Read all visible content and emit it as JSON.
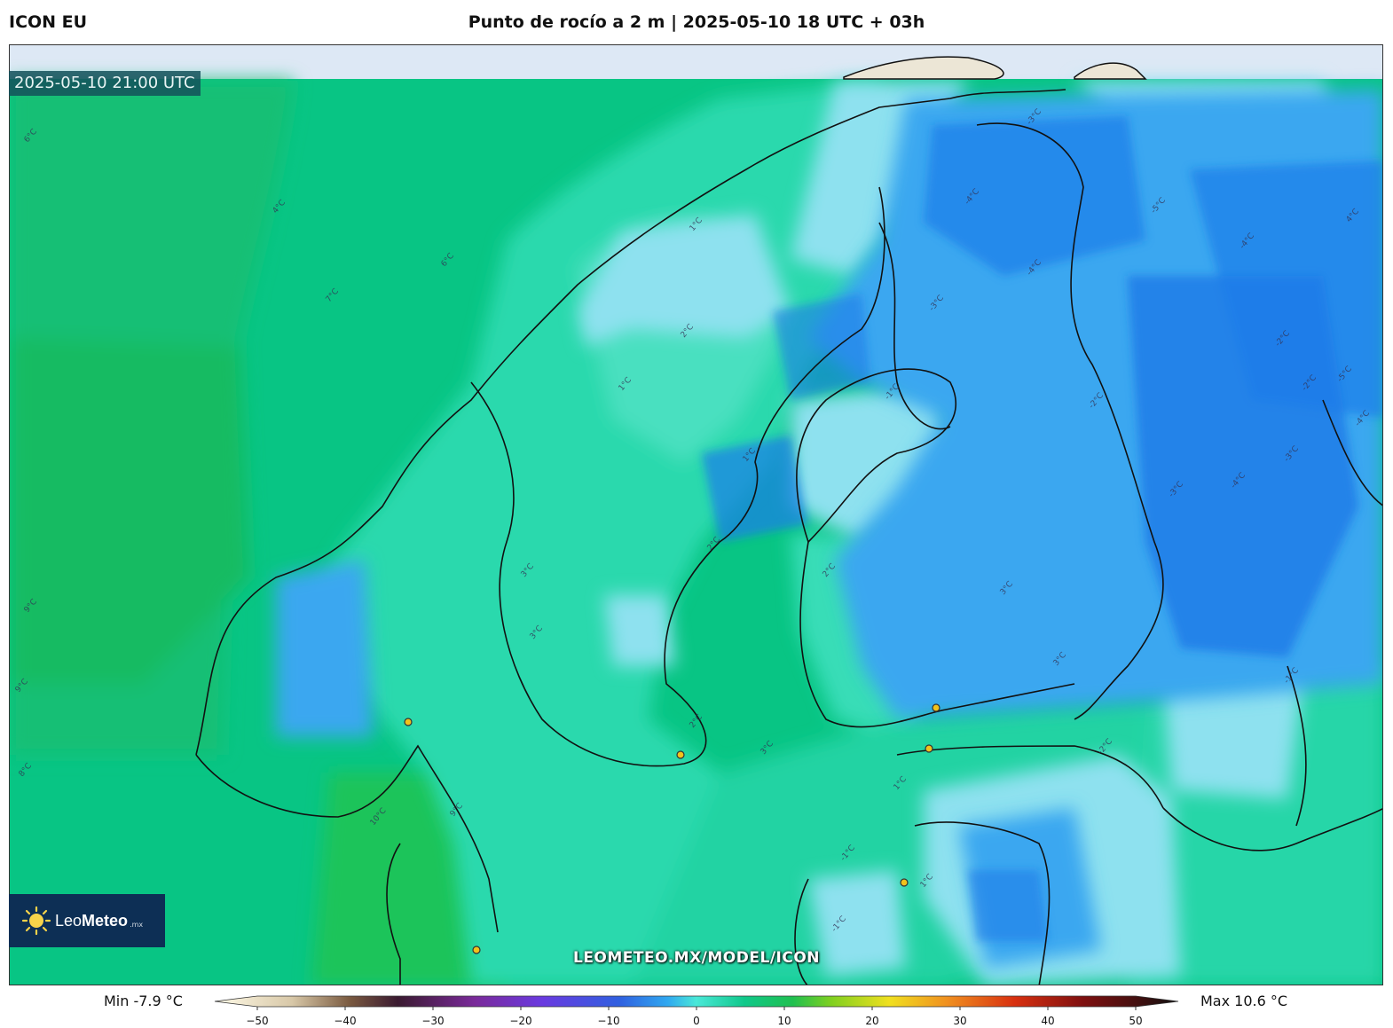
{
  "header": {
    "model_name": "ICON EU",
    "title": "Punto de rocío a 2 m | 2025-05-10 18 UTC + 03h"
  },
  "map": {
    "valid_time": "2025-05-10 21:00 UTC",
    "watermark": "LEOMETEO.MX/MODEL/ICON",
    "contour_labels": [
      "6°C",
      "6°C",
      "7°C",
      "9°C",
      "9°C",
      "8°C",
      "10°C",
      "9°C",
      "1°C",
      "2°C",
      "1°C",
      "1°C",
      "3°C",
      "3°C",
      "2°C",
      "3°C",
      "-1°C",
      "-3°C",
      "-4°C",
      "-5°C",
      "-4°C",
      "-4°C",
      "-2°C",
      "-3°C",
      "-2°C",
      "-2°C",
      "-3°C",
      "-4°C",
      "-4°C",
      "-5°C",
      "-2°C",
      "-1°C",
      "2°C",
      "3°C",
      "1°C",
      "-1°C",
      "4°C",
      "2°C",
      "3°C",
      "4°C",
      "1°C",
      "-3°C",
      "-1°C"
    ],
    "colors": {
      "sea_warm": "#0fbf6f",
      "land_green": "#18c77a",
      "teal": "#22e0b5",
      "light_blue": "#8fe2f0",
      "mid_blue": "#3aa6f0",
      "deep_blue": "#1f7de8",
      "background_top": "#dde8f5"
    }
  },
  "logo": {
    "brand_light": "Leo",
    "brand_bold": "Meteo",
    "suffix": ".mx"
  },
  "colorbar": {
    "min_label": "Min -7.9 °C",
    "max_label": "Max 10.6 °C",
    "ticks": [
      "−50",
      "−40",
      "−30",
      "−20",
      "−10",
      "0",
      "10",
      "20",
      "30",
      "40",
      "50"
    ],
    "range": [
      -50,
      50
    ]
  }
}
